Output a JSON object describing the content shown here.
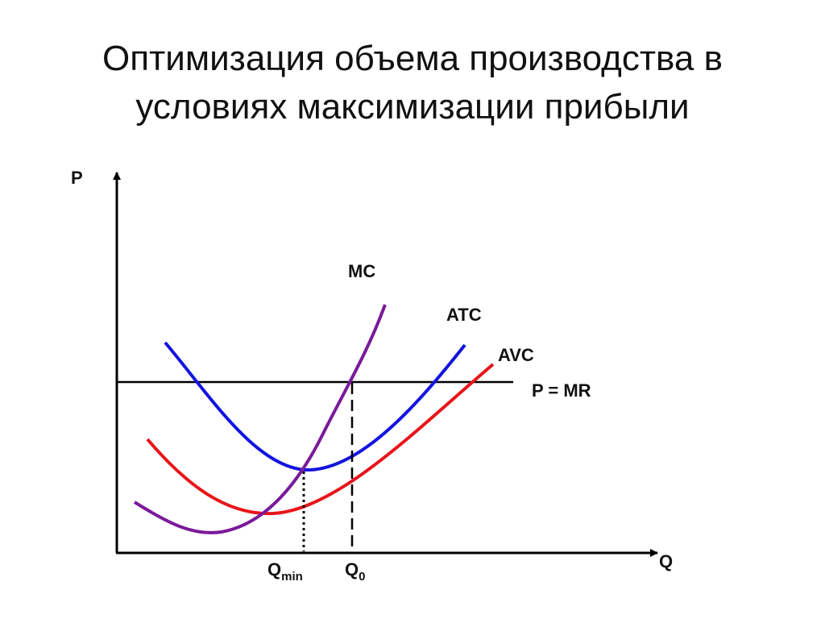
{
  "header": {
    "title": [
      "Оптимизация объема производства в",
      "условиях максимизации прибыли"
    ]
  },
  "diagram": {
    "axes": {
      "y": "P",
      "x": "Q"
    },
    "curves": {
      "mc": "MC",
      "atc": "ATC",
      "avc": "AVC",
      "mr": "P = MR"
    },
    "points": {
      "q_min": {
        "text": "Q",
        "sub": "min"
      },
      "q_0": {
        "text": "Q",
        "sub": "0"
      }
    }
  }
}
